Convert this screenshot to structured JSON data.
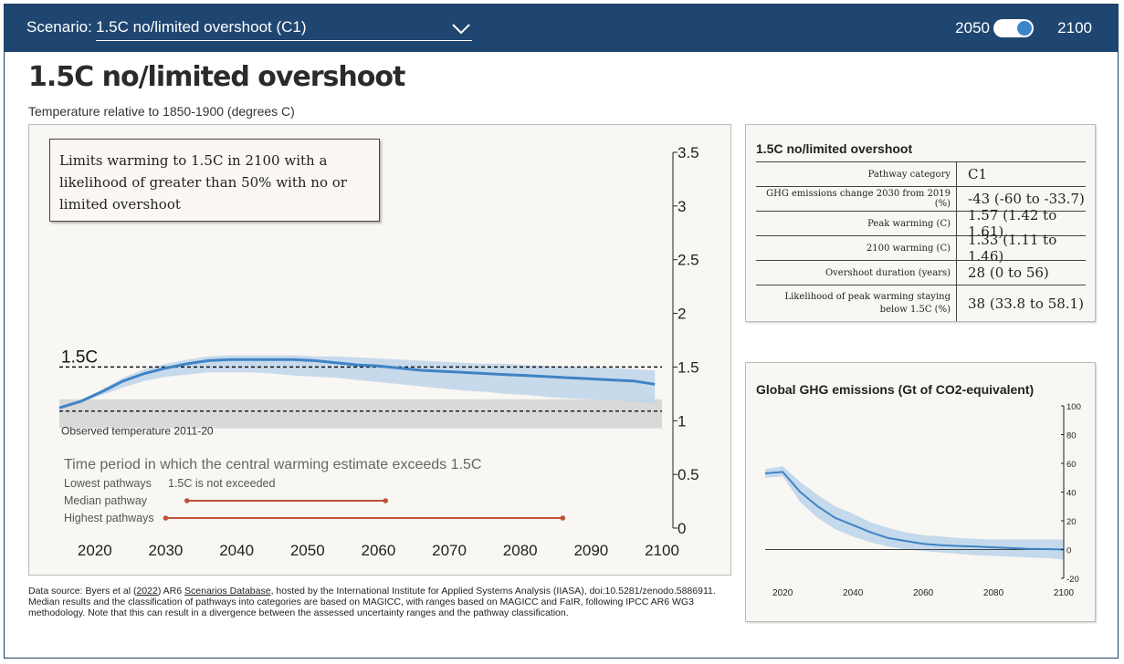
{
  "header": {
    "scenario_label": "Scenario:",
    "scenario_value": "1.5C no/limited overshoot (C1)",
    "toggle_left": "2050",
    "toggle_right": "2100",
    "toggle_state": "2100",
    "colors": {
      "bar": "#1f4671",
      "knob": "#3a86c8"
    }
  },
  "title": "1.5C no/limited overshoot",
  "subtitle": "Temperature relative to 1850-1900 (degrees C)",
  "description": "Limits warming to 1.5C in 2100 with a likelihood of greater than 50% with no or limited overshoot",
  "chart_data": [
    {
      "type": "line",
      "title": "",
      "ylabel": "Temperature relative to 1850-1900 (degrees C)",
      "x_ticks": [
        2020,
        2030,
        2040,
        2050,
        2060,
        2070,
        2080,
        2090,
        2100
      ],
      "y_ticks": [
        0,
        0.5,
        1,
        1.5,
        2,
        2.5,
        3,
        3.5
      ],
      "xlim": [
        2015,
        2100
      ],
      "ylim": [
        0,
        3.5
      ],
      "threshold": {
        "value": 1.5,
        "label": "1.5C"
      },
      "observed": {
        "value": 1.09,
        "band": [
          0.93,
          1.2
        ],
        "label": "Observed temperature 2011-20"
      },
      "series": [
        {
          "x": [
            2015,
            2018,
            2021,
            2024,
            2027,
            2030,
            2033,
            2036,
            2039,
            2042,
            2045,
            2048,
            2051,
            2054,
            2057,
            2060,
            2063,
            2066,
            2069,
            2072,
            2075,
            2078,
            2081,
            2084,
            2087,
            2090,
            2093,
            2096,
            2099
          ],
          "values": [
            1.12,
            1.18,
            1.27,
            1.37,
            1.44,
            1.49,
            1.53,
            1.56,
            1.57,
            1.57,
            1.57,
            1.57,
            1.56,
            1.54,
            1.52,
            1.51,
            1.49,
            1.47,
            1.46,
            1.45,
            1.44,
            1.43,
            1.42,
            1.41,
            1.4,
            1.39,
            1.38,
            1.37,
            1.34
          ],
          "low": [
            1.12,
            1.17,
            1.24,
            1.31,
            1.37,
            1.41,
            1.43,
            1.45,
            1.45,
            1.45,
            1.44,
            1.42,
            1.41,
            1.4,
            1.38,
            1.36,
            1.34,
            1.32,
            1.3,
            1.28,
            1.27,
            1.25,
            1.24,
            1.22,
            1.21,
            1.2,
            1.19,
            1.18,
            1.16
          ],
          "high": [
            1.13,
            1.19,
            1.29,
            1.4,
            1.48,
            1.53,
            1.57,
            1.6,
            1.61,
            1.61,
            1.61,
            1.61,
            1.6,
            1.6,
            1.59,
            1.58,
            1.57,
            1.56,
            1.55,
            1.54,
            1.53,
            1.53,
            1.52,
            1.51,
            1.5,
            1.5,
            1.49,
            1.48,
            1.47
          ]
        }
      ],
      "period_title": "Time period in which the central warming estimate exceeds 1.5C",
      "periods": [
        {
          "label": "Lowest pathways",
          "note": "1.5C is not exceeded"
        },
        {
          "label": "Median pathway",
          "start": 2033,
          "end": 2061
        },
        {
          "label": "Highest pathways",
          "start": 2030,
          "end": 2086
        }
      ],
      "colors": {
        "line": "#3f83c4",
        "band": "#bed5ea",
        "threshold": "#111111",
        "period": "#c0503a",
        "observed_band": "#d9d9d9"
      }
    },
    {
      "type": "area",
      "title": "Global GHG emissions (Gt of CO2-equivalent)",
      "x_ticks": [
        2020,
        2040,
        2060,
        2080,
        2100
      ],
      "y_ticks": [
        -20,
        0,
        20,
        40,
        60,
        80,
        100
      ],
      "xlim": [
        2015,
        2100
      ],
      "ylim": [
        -20,
        100
      ],
      "series": [
        {
          "x": [
            2015,
            2020,
            2025,
            2030,
            2035,
            2040,
            2045,
            2050,
            2055,
            2060,
            2065,
            2070,
            2075,
            2080,
            2085,
            2090,
            2095,
            2100
          ],
          "values": [
            53,
            54,
            40,
            30,
            22,
            17,
            12,
            8,
            6,
            4,
            3,
            2.5,
            2,
            1.5,
            1,
            0.5,
            0.3,
            0
          ],
          "low": [
            50,
            51,
            33,
            22,
            14,
            9,
            5,
            2,
            0,
            -1,
            -2,
            -3,
            -4,
            -4.5,
            -5,
            -5.5,
            -6,
            -7
          ],
          "high": [
            56,
            58,
            47,
            38,
            30,
            25,
            19,
            15,
            12,
            10,
            9,
            8,
            7.5,
            7,
            7,
            7,
            7,
            7
          ]
        }
      ],
      "colors": {
        "line": "#3f83c4",
        "band": "#bed5ea",
        "zero": "#444444"
      }
    }
  ],
  "table": {
    "title": "1.5C no/limited overshoot",
    "rows": [
      {
        "label": "Pathway category",
        "value": "C1"
      },
      {
        "label": "GHG emissions change 2030 from 2019 (%)",
        "value": "-43 (-60 to -33.7)"
      },
      {
        "label": "Peak warming (C)",
        "value": "1.57 (1.42 to 1.61)"
      },
      {
        "label": "2100 warming (C)",
        "value": "1.33 (1.11 to 1.46)"
      },
      {
        "label": "Overshoot duration (years)",
        "value": "28 (0 to 56)"
      },
      {
        "label": "Likelihood of peak warming staying below 1.5C (%)",
        "value": "38 (33.8 to 58.1)"
      }
    ]
  },
  "footnote": {
    "p1": "Data source: Byers et al (",
    "year": "2022",
    "p2": ") AR6 ",
    "link": "Scenarios Database",
    "p3": ", hosted by the International Institute for Applied Systems Analysis (IIASA), doi:10.5281/zenodo.5886911. Median results and the classification of pathways into categories are based on MAGICC, with ranges based on MAGICC and FaIR, following IPCC AR6 WG3 methodology. Note that this can result in a divergence between the assessed uncertainty ranges and the pathway classification."
  }
}
